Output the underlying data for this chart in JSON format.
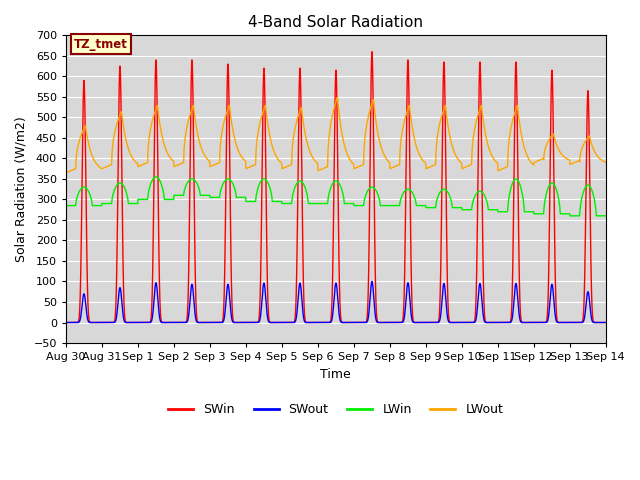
{
  "title": "4-Band Solar Radiation",
  "ylabel": "Solar Radiation (W/m2)",
  "xlabel": "Time",
  "ylim": [
    -50,
    700
  ],
  "yticks": [
    -50,
    0,
    50,
    100,
    150,
    200,
    250,
    300,
    350,
    400,
    450,
    500,
    550,
    600,
    650,
    700
  ],
  "bg_color": "#d8d8d8",
  "fig_color": "#ffffff",
  "annotation_text": "TZ_tmet",
  "annotation_bg": "#ffffcc",
  "annotation_border": "#8b0000",
  "colors": {
    "SWin": "#ff0000",
    "SWout": "#0000ff",
    "LWin": "#00ee00",
    "LWout": "#ffa500"
  },
  "n_days": 15,
  "SWin_peaks": [
    590,
    625,
    640,
    640,
    630,
    620,
    620,
    615,
    660,
    640,
    635,
    635,
    635,
    615,
    565
  ],
  "SWout_peaks": [
    70,
    85,
    97,
    93,
    93,
    96,
    96,
    96,
    100,
    97,
    95,
    95,
    95,
    93,
    75
  ],
  "LWin_day_peaks": [
    330,
    340,
    355,
    350,
    350,
    350,
    345,
    345,
    330,
    325,
    325,
    320,
    350,
    340,
    335
  ],
  "LWin_night_vals": [
    285,
    290,
    300,
    310,
    305,
    295,
    290,
    290,
    285,
    285,
    280,
    275,
    270,
    265,
    260
  ],
  "LWout_day_peaks": [
    480,
    515,
    530,
    530,
    530,
    530,
    525,
    550,
    545,
    530,
    530,
    530,
    530,
    460,
    455
  ],
  "LWout_night_vals": [
    365,
    375,
    380,
    380,
    380,
    375,
    375,
    370,
    375,
    375,
    375,
    375,
    370,
    390,
    385
  ],
  "tick_labels": [
    "Aug 30",
    "Aug 31",
    "Sep 1",
    "Sep 2",
    "Sep 3",
    "Sep 4",
    "Sep 5",
    "Sep 6",
    "Sep 7",
    "Sep 8",
    "Sep 9",
    "Sep 10",
    "Sep 11",
    "Sep 12",
    "Sep 13",
    "Sep 14"
  ]
}
